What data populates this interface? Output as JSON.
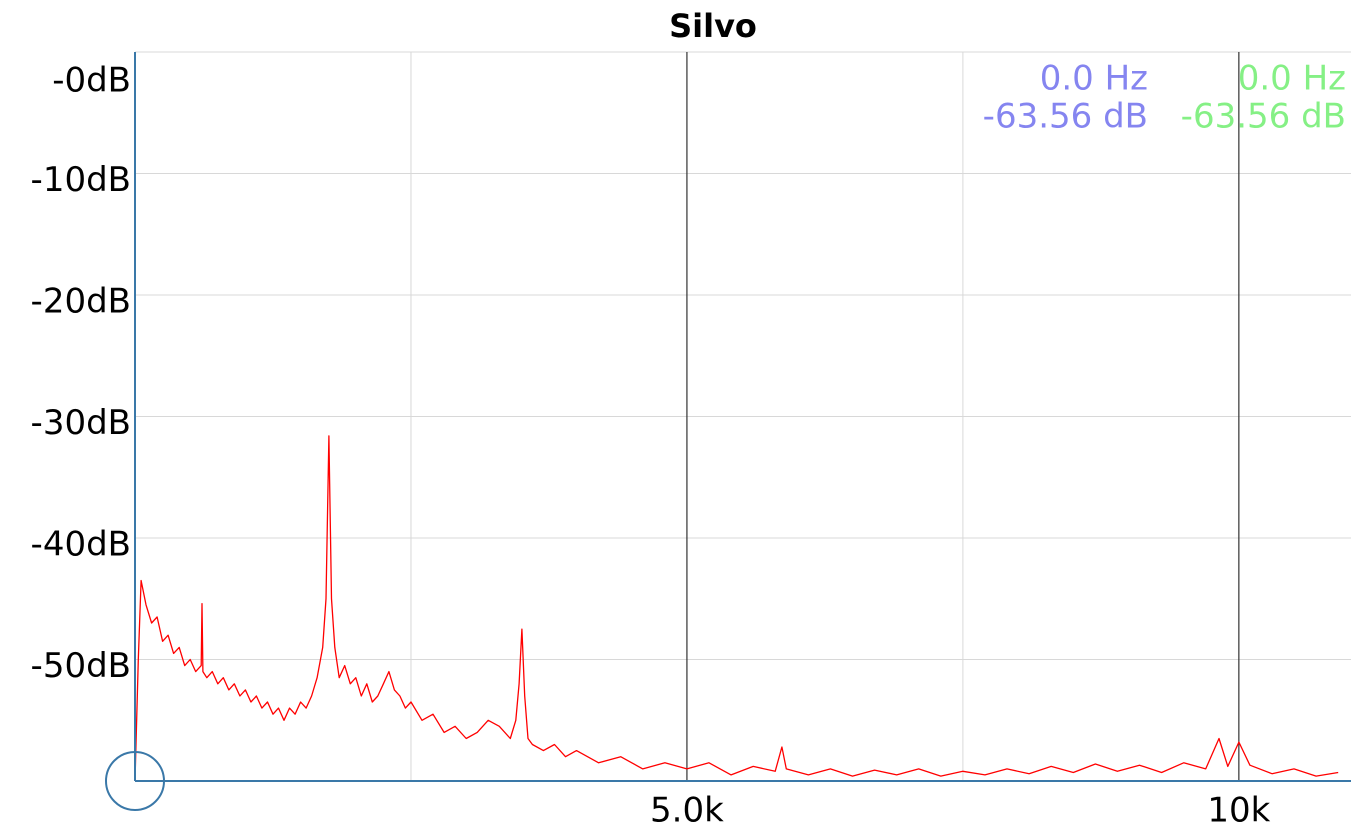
{
  "chart_data": {
    "type": "line",
    "title": "Silvo",
    "color": "#ff0000",
    "xlim": [
      0,
      11025
    ],
    "ylim": [
      -60,
      0
    ],
    "xticks": [
      {
        "value": 5000,
        "label": "5.0k"
      },
      {
        "value": 10000,
        "label": "10k"
      }
    ],
    "xgrid_minor": [
      2500,
      7500
    ],
    "yticks": [
      {
        "value": 0,
        "label": "-0dB"
      },
      {
        "value": -10,
        "label": "-10dB"
      },
      {
        "value": -20,
        "label": "-20dB"
      },
      {
        "value": -30,
        "label": "-30dB"
      },
      {
        "value": -40,
        "label": "-40dB"
      },
      {
        "value": -50,
        "label": "-50dB"
      }
    ],
    "grid": true,
    "readouts": [
      {
        "freq": "0.0 Hz",
        "level": "-63.56 dB",
        "color": "#8585f0"
      },
      {
        "freq": "0.0 Hz",
        "level": "-63.56 dB",
        "color": "#85f085"
      }
    ],
    "x": [
      0,
      30,
      55,
      100,
      150,
      200,
      250,
      300,
      350,
      400,
      450,
      500,
      550,
      600,
      607,
      615,
      650,
      700,
      750,
      800,
      850,
      900,
      950,
      1000,
      1050,
      1100,
      1150,
      1200,
      1250,
      1300,
      1350,
      1400,
      1450,
      1500,
      1550,
      1600,
      1650,
      1700,
      1730,
      1757,
      1780,
      1810,
      1850,
      1900,
      1950,
      2000,
      2050,
      2100,
      2150,
      2200,
      2250,
      2300,
      2350,
      2400,
      2450,
      2500,
      2600,
      2700,
      2800,
      2900,
      3000,
      3100,
      3200,
      3300,
      3400,
      3450,
      3480,
      3505,
      3530,
      3560,
      3600,
      3700,
      3800,
      3900,
      4000,
      4200,
      4400,
      4600,
      4800,
      5000,
      5200,
      5400,
      5600,
      5800,
      5860,
      5900,
      6100,
      6300,
      6500,
      6700,
      6900,
      7100,
      7300,
      7500,
      7700,
      7900,
      8100,
      8300,
      8500,
      8700,
      8900,
      9100,
      9300,
      9500,
      9700,
      9820,
      9900,
      10000,
      10100,
      10300,
      10500,
      10700,
      10900
    ],
    "values": [
      -60,
      -50,
      -43.5,
      -45.5,
      -47,
      -46.5,
      -48.5,
      -48,
      -49.5,
      -49,
      -50.5,
      -50,
      -51,
      -50.5,
      -45.4,
      -51,
      -51.5,
      -51,
      -52,
      -51.5,
      -52.5,
      -52,
      -53,
      -52.5,
      -53.5,
      -53,
      -54,
      -53.5,
      -54.5,
      -54,
      -55,
      -54,
      -54.5,
      -53.5,
      -54,
      -53,
      -51.5,
      -49,
      -45,
      -31.6,
      -45,
      -49,
      -51.5,
      -50.5,
      -52,
      -51.5,
      -53,
      -52,
      -53.5,
      -53,
      -52,
      -51,
      -52.5,
      -53,
      -54,
      -53.5,
      -55,
      -54.5,
      -56,
      -55.5,
      -56.5,
      -56,
      -55,
      -55.5,
      -56.5,
      -55,
      -52,
      -47.5,
      -53,
      -56.5,
      -57,
      -57.5,
      -57,
      -58,
      -57.5,
      -58.5,
      -58,
      -59,
      -58.5,
      -59,
      -58.5,
      -59.5,
      -58.8,
      -59.2,
      -57.2,
      -59,
      -59.5,
      -59,
      -59.6,
      -59.1,
      -59.5,
      -59,
      -59.6,
      -59.2,
      -59.5,
      -59,
      -59.4,
      -58.8,
      -59.3,
      -58.6,
      -59.2,
      -58.7,
      -59.3,
      -58.5,
      -59,
      -56.5,
      -58.8,
      -56.8,
      -58.7,
      -59.4,
      -59,
      -59.6,
      -59.3
    ]
  }
}
